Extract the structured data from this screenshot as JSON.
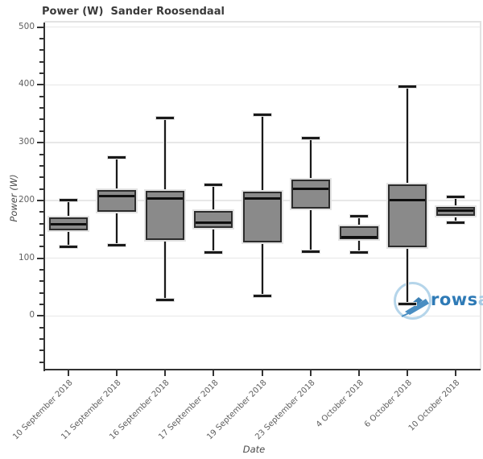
{
  "title": "Power (W)  Sander Roosendaal",
  "watermark": {
    "text_bold": "rows",
    "text_light": "an",
    "circle_color": "#b5d5ea",
    "boat_color": "#4a8ec2",
    "text_bold_color": "#2e7ab6",
    "text_light_color": "#a5cbe5"
  },
  "chart_data": {
    "type": "box",
    "title": "Power (W)  Sander Roosendaal",
    "xlabel": "Date",
    "ylabel": "Power (W)",
    "grid": true,
    "ylim": [
      -93,
      508
    ],
    "yticks": [
      0,
      100,
      200,
      300,
      400,
      500
    ],
    "minor_tick_step": 20,
    "categories": [
      "10 September 2018",
      "11 September 2018",
      "16 September 2018",
      "17 September 2018",
      "19 September 2018",
      "23 September 2018",
      "4 October 2018",
      "6 October 2018",
      "10 October 2018"
    ],
    "boxes": [
      {
        "min": 120,
        "q1": 148,
        "median": 158,
        "q3": 170,
        "max": 200
      },
      {
        "min": 122,
        "q1": 181,
        "median": 208,
        "q3": 218,
        "max": 275
      },
      {
        "min": 27,
        "q1": 132,
        "median": 203,
        "q3": 216,
        "max": 343
      },
      {
        "min": 110,
        "q1": 152,
        "median": 162,
        "q3": 182,
        "max": 227
      },
      {
        "min": 35,
        "q1": 127,
        "median": 204,
        "q3": 215,
        "max": 348
      },
      {
        "min": 111,
        "q1": 186,
        "median": 220,
        "q3": 236,
        "max": 308
      },
      {
        "min": 110,
        "q1": 133,
        "median": 136,
        "q3": 155,
        "max": 172
      },
      {
        "min": 20,
        "q1": 119,
        "median": 201,
        "q3": 228,
        "max": 397
      },
      {
        "min": 161,
        "q1": 173,
        "median": 182,
        "q3": 189,
        "max": 206
      }
    ],
    "colors": {
      "box_fill": "#8a8a8a",
      "box_border": "#2c2c2c",
      "median": "#0f0f0f",
      "whisker": "#1a1a1a",
      "grid": "#e7e7e7",
      "axis": "#333333",
      "tick_label": "#5f5f5f",
      "title_color": "#3a3a3a"
    }
  }
}
